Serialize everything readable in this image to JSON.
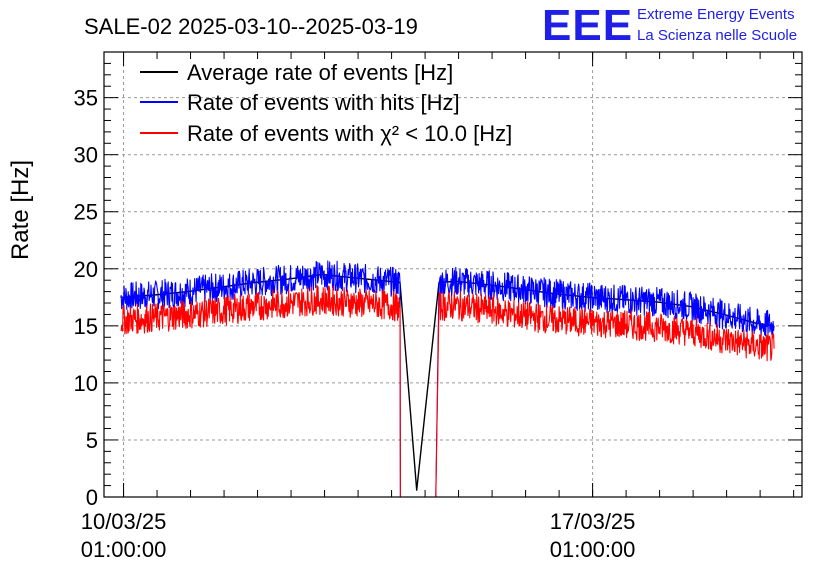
{
  "header": {
    "title": "SALE-02 2025-03-10--2025-03-19",
    "logo_text": "EEE",
    "logo_line1": "Extreme Energy Events",
    "logo_line2": "La Scienza nelle Scuole"
  },
  "chart_data": {
    "type": "line",
    "title": "SALE-02 2025-03-10--2025-03-19",
    "ylabel": "Rate [Hz]",
    "xlabel": "",
    "xlim": [
      "2025-03-09 18:00",
      "2025-03-20 04:00"
    ],
    "ylim": [
      0,
      39
    ],
    "grid": true,
    "legend_position": "top-left",
    "y_ticks": [
      0,
      5,
      10,
      15,
      20,
      25,
      30,
      35
    ],
    "x_ticks": [
      {
        "x": "2025-03-10 01:00",
        "line1": "10/03/25",
        "line2": "01:00:00"
      },
      {
        "x": "2025-03-17 01:00",
        "line1": "17/03/25",
        "line2": "01:00:00"
      }
    ],
    "x_range_of_data": [
      "2025-03-10 00:00",
      "2025-03-19 18:00"
    ],
    "series": [
      {
        "name": "Average rate of events [Hz]",
        "color": "#000000",
        "points": [
          [
            "2025-03-10 00:00",
            17.5
          ],
          [
            "2025-03-10 12:00",
            17.7
          ],
          [
            "2025-03-11 00:00",
            18.0
          ],
          [
            "2025-03-11 12:00",
            18.4
          ],
          [
            "2025-03-12 00:00",
            18.8
          ],
          [
            "2025-03-12 12:00",
            19.1
          ],
          [
            "2025-03-13 00:00",
            19.5
          ],
          [
            "2025-03-13 12:00",
            19.2
          ],
          [
            "2025-03-14 00:00",
            18.9
          ],
          [
            "2025-03-14 04:00",
            18.8
          ],
          [
            "2025-03-14 10:00",
            0.6
          ],
          [
            "2025-03-14 18:00",
            18.8
          ],
          [
            "2025-03-15 00:00",
            18.9
          ],
          [
            "2025-03-15 12:00",
            18.6
          ],
          [
            "2025-03-16 00:00",
            18.2
          ],
          [
            "2025-03-16 12:00",
            17.8
          ],
          [
            "2025-03-17 00:00",
            17.5
          ],
          [
            "2025-03-17 12:00",
            17.3
          ],
          [
            "2025-03-18 00:00",
            17.1
          ],
          [
            "2025-03-18 12:00",
            16.7
          ],
          [
            "2025-03-19 00:00",
            16.0
          ],
          [
            "2025-03-19 12:00",
            15.2
          ],
          [
            "2025-03-19 18:00",
            15.0
          ]
        ]
      },
      {
        "name": "Rate of events with hits [Hz]",
        "color": "#0000ff",
        "points": [
          [
            "2025-03-10 00:00",
            17.5
          ],
          [
            "2025-03-10 12:00",
            17.7
          ],
          [
            "2025-03-11 00:00",
            18.0
          ],
          [
            "2025-03-11 12:00",
            18.4
          ],
          [
            "2025-03-12 00:00",
            18.8
          ],
          [
            "2025-03-12 12:00",
            19.1
          ],
          [
            "2025-03-13 00:00",
            19.5
          ],
          [
            "2025-03-13 12:00",
            19.2
          ],
          [
            "2025-03-14 00:00",
            18.9
          ],
          [
            "2025-03-14 04:00",
            18.8
          ],
          [
            "2025-03-14 04:10",
            0
          ],
          [
            "2025-03-14 16:50",
            0
          ],
          [
            "2025-03-14 18:00",
            18.8
          ],
          [
            "2025-03-15 00:00",
            18.9
          ],
          [
            "2025-03-15 12:00",
            18.6
          ],
          [
            "2025-03-16 00:00",
            18.2
          ],
          [
            "2025-03-16 12:00",
            17.8
          ],
          [
            "2025-03-17 00:00",
            17.5
          ],
          [
            "2025-03-17 12:00",
            17.3
          ],
          [
            "2025-03-18 00:00",
            17.1
          ],
          [
            "2025-03-18 12:00",
            16.7
          ],
          [
            "2025-03-19 00:00",
            16.0
          ],
          [
            "2025-03-19 12:00",
            15.2
          ],
          [
            "2025-03-19 18:00",
            15.0
          ]
        ]
      },
      {
        "name": "Rate of events with χ² < 10.0 [Hz]",
        "color": "#ff0000",
        "points": [
          [
            "2025-03-10 00:00",
            15.5
          ],
          [
            "2025-03-10 12:00",
            15.7
          ],
          [
            "2025-03-11 00:00",
            16.0
          ],
          [
            "2025-03-11 12:00",
            16.3
          ],
          [
            "2025-03-12 00:00",
            16.7
          ],
          [
            "2025-03-12 12:00",
            17.0
          ],
          [
            "2025-03-13 00:00",
            17.3
          ],
          [
            "2025-03-13 12:00",
            17.0
          ],
          [
            "2025-03-14 00:00",
            16.8
          ],
          [
            "2025-03-14 04:00",
            16.6
          ],
          [
            "2025-03-14 04:10",
            0
          ],
          [
            "2025-03-14 16:50",
            0
          ],
          [
            "2025-03-14 18:00",
            16.7
          ],
          [
            "2025-03-15 00:00",
            16.8
          ],
          [
            "2025-03-15 12:00",
            16.4
          ],
          [
            "2025-03-16 00:00",
            15.9
          ],
          [
            "2025-03-16 12:00",
            15.5
          ],
          [
            "2025-03-17 00:00",
            15.3
          ],
          [
            "2025-03-17 12:00",
            15.1
          ],
          [
            "2025-03-18 00:00",
            14.9
          ],
          [
            "2025-03-18 12:00",
            14.5
          ],
          [
            "2025-03-19 00:00",
            13.8
          ],
          [
            "2025-03-19 12:00",
            13.2
          ],
          [
            "2025-03-19 18:00",
            13.0
          ]
        ]
      }
    ]
  }
}
